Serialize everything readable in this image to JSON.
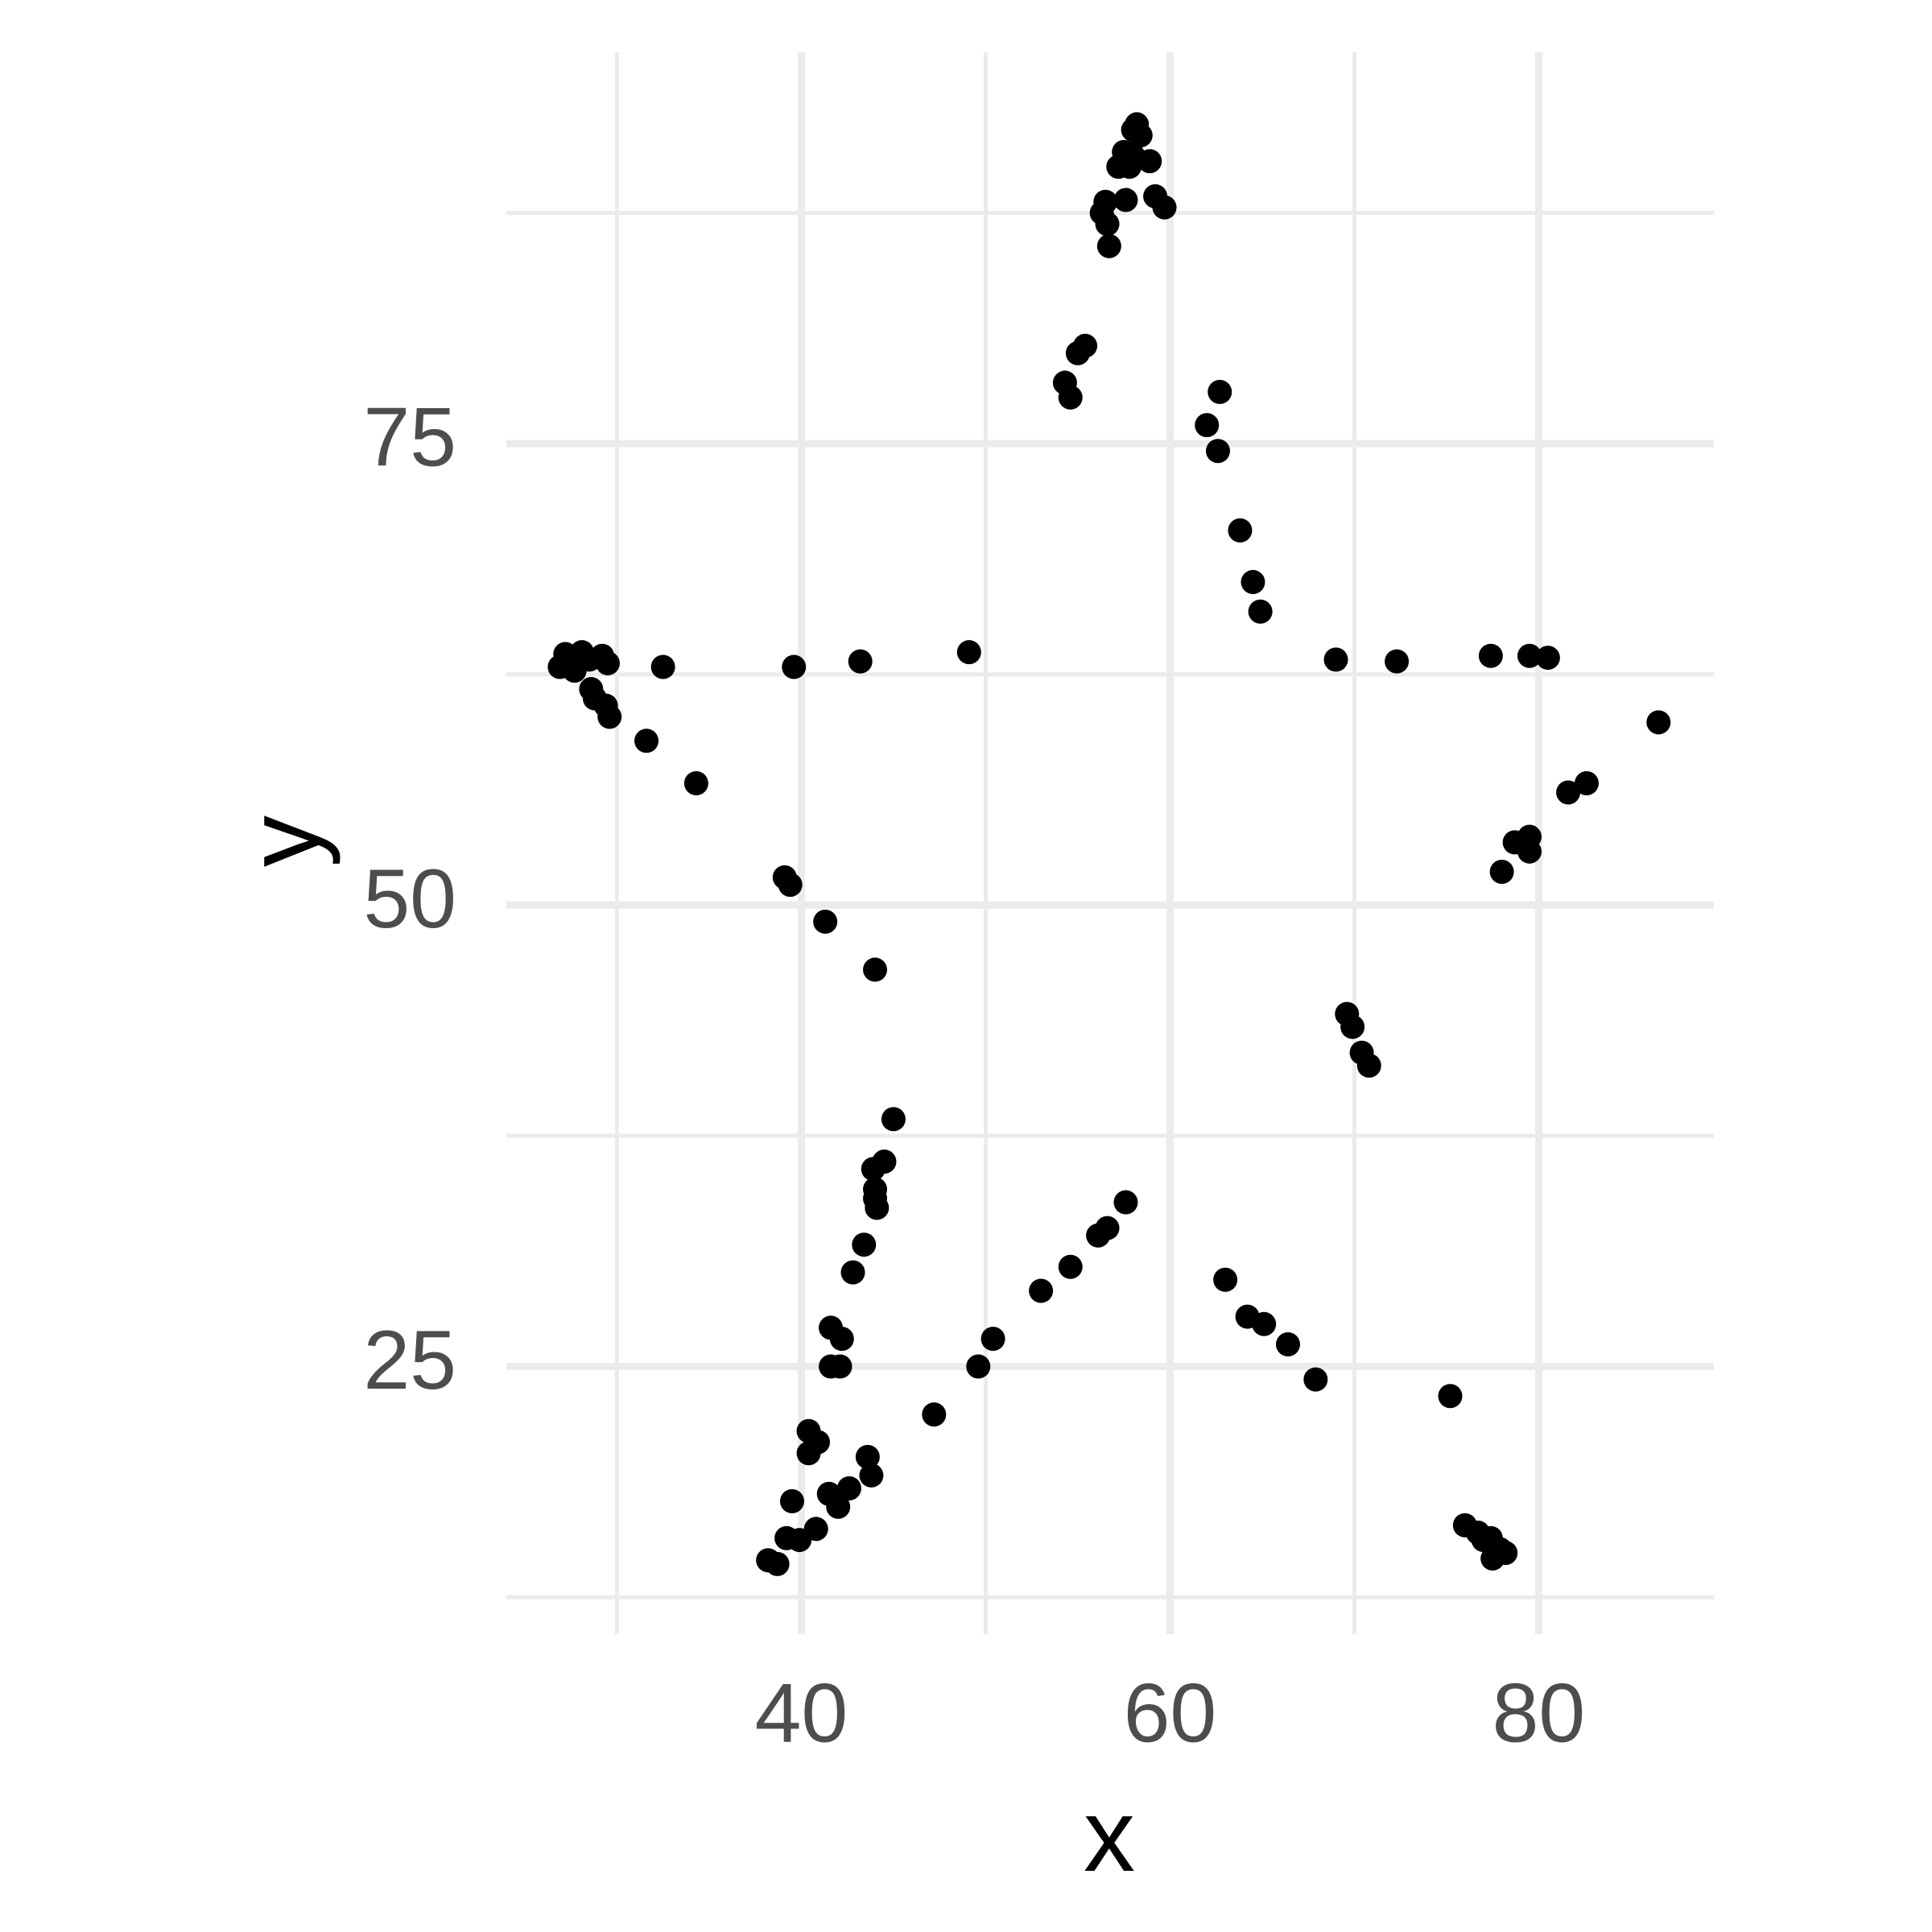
{
  "chart_data": {
    "type": "scatter",
    "x_label": "x",
    "y_label": "y",
    "color": "#000000",
    "grid": true,
    "xlim": [
      24,
      89.5
    ],
    "ylim": [
      10.5,
      96.2
    ],
    "xticks": [
      40,
      60,
      80
    ],
    "yticks": [
      25,
      50,
      75
    ],
    "xminor": [
      30,
      50,
      70
    ],
    "yminor": [
      12.5,
      37.5,
      62.5,
      87.5
    ],
    "x": [
      58.2,
      58.0,
      58.4,
      57.5,
      58.0,
      57.2,
      58.9,
      57.8,
      59.2,
      59.7,
      57.6,
      56.5,
      56.3,
      56.6,
      56.7,
      55.4,
      55.0,
      54.3,
      54.6,
      62.7,
      62.0,
      62.6,
      63.8,
      64.5,
      64.9,
      26.9,
      27.2,
      27.7,
      28.1,
      28.5,
      29.2,
      29.5,
      28.6,
      28.8,
      29.4,
      29.6,
      31.6,
      34.3,
      32.5,
      39.6,
      43.2,
      49.1,
      69.0,
      72.3,
      77.4,
      79.5,
      80.5,
      86.5,
      82.6,
      81.6,
      79.5,
      78.7,
      79.5,
      78.0,
      39.1,
      39.4,
      41.3,
      44.0,
      45.0,
      44.5,
      43.9,
      44.0,
      44.0,
      44.1,
      43.4,
      42.8,
      41.6,
      42.2,
      41.6,
      42.1,
      40.4,
      40.9,
      40.4,
      43.6,
      43.8,
      42.6,
      41.5,
      42.0,
      39.5,
      40.8,
      39.9,
      39.2,
      38.2,
      38.7,
      47.2,
      49.6,
      50.4,
      53.0,
      54.6,
      56.1,
      56.6,
      57.6,
      69.6,
      69.9,
      70.4,
      70.8,
      63.0,
      64.2,
      65.1,
      66.4,
      67.9,
      75.2,
      76.0,
      76.7,
      77.4,
      77.9,
      77.5,
      78.2,
      77.0
    ],
    "y": [
      92.3,
      92.0,
      91.7,
      90.8,
      90.6,
      90.0,
      90.3,
      90.0,
      88.4,
      87.8,
      88.2,
      88.1,
      87.5,
      86.9,
      85.7,
      80.3,
      79.9,
      78.3,
      77.5,
      77.8,
      76.0,
      74.6,
      70.3,
      67.5,
      65.9,
      62.9,
      63.6,
      62.7,
      63.7,
      63.3,
      63.5,
      63.1,
      61.7,
      61.2,
      60.8,
      60.2,
      58.9,
      56.6,
      62.9,
      62.9,
      63.2,
      63.7,
      63.3,
      63.2,
      63.5,
      63.5,
      63.4,
      59.9,
      56.6,
      56.1,
      53.7,
      53.4,
      52.9,
      51.8,
      51.5,
      51.1,
      49.1,
      46.5,
      38.4,
      36.1,
      35.7,
      34.6,
      34.1,
      33.6,
      31.6,
      30.1,
      27.1,
      26.5,
      25.0,
      25.0,
      21.5,
      20.9,
      20.3,
      20.1,
      19.1,
      18.4,
      18.1,
      17.4,
      17.7,
      16.2,
      15.6,
      15.7,
      14.5,
      14.3,
      22.4,
      25.0,
      26.5,
      29.1,
      30.4,
      32.1,
      32.5,
      33.9,
      44.1,
      43.4,
      42.0,
      41.3,
      29.7,
      27.7,
      27.3,
      26.2,
      24.3,
      23.4,
      16.4,
      16.0,
      15.7,
      15.1,
      14.6,
      14.9,
      15.6
    ]
  }
}
